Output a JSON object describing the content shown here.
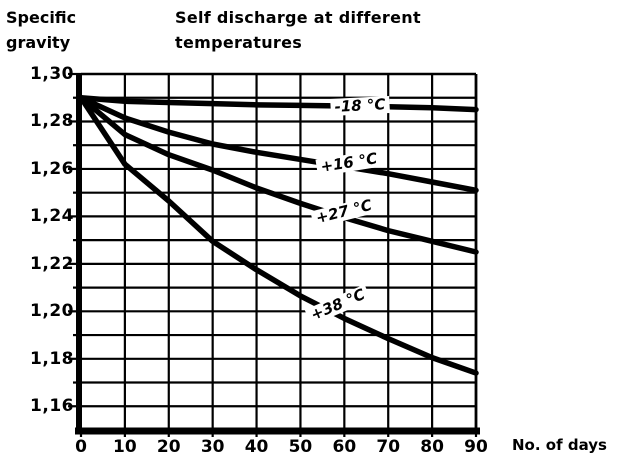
{
  "header": {
    "y_axis_title_line1": "Specific",
    "y_axis_title_line2": "gravity",
    "title_line1": "Self discharge at different",
    "title_line2": "temperatures",
    "x_axis_label": "No. of days"
  },
  "colors": {
    "ink": "#000000",
    "background": "#ffffff"
  },
  "chart_data": {
    "type": "line",
    "title": "Self discharge at different temperatures",
    "ylabel": "Specific gravity",
    "xlabel": "No. of days",
    "xlim": [
      0,
      90
    ],
    "ylim": [
      1.15,
      1.3
    ],
    "grid": {
      "visible": true,
      "horizontal_step": 0.01,
      "vertical_step_days": 10
    },
    "x": [
      0,
      10,
      20,
      30,
      40,
      50,
      60,
      70,
      80,
      90
    ],
    "series": [
      {
        "name": "-18 °C",
        "values": [
          1.29,
          1.2885,
          1.288,
          1.2875,
          1.287,
          1.2868,
          1.2865,
          1.2862,
          1.2858,
          1.285
        ],
        "label": {
          "x": 63.5,
          "y": 1.2865,
          "rotation": -3
        }
      },
      {
        "name": "+16 °C",
        "values": [
          1.29,
          1.2815,
          1.2755,
          1.2705,
          1.267,
          1.264,
          1.261,
          1.258,
          1.2545,
          1.251
        ],
        "label": {
          "x": 61,
          "y": 1.2625,
          "rotation": -9
        }
      },
      {
        "name": "+27 °C",
        "values": [
          1.29,
          1.2745,
          1.266,
          1.2595,
          1.252,
          1.2455,
          1.2395,
          1.234,
          1.2295,
          1.225
        ],
        "label": {
          "x": 60,
          "y": 1.242,
          "rotation": -14
        }
      },
      {
        "name": "+38 °C",
        "values": [
          1.29,
          1.262,
          1.2465,
          1.2295,
          1.2175,
          1.2065,
          1.197,
          1.1885,
          1.1805,
          1.174
        ],
        "label": {
          "x": 58.5,
          "y": 1.2025,
          "rotation": -23
        }
      }
    ],
    "yticks": {
      "values": [
        1.3,
        1.28,
        1.26,
        1.24,
        1.22,
        1.2,
        1.18,
        1.16
      ],
      "labels": [
        "1,30",
        "1,28",
        "1,26",
        "1,24",
        "1,22",
        "1,20",
        "1,18",
        "1,16"
      ]
    },
    "xticks": {
      "values": [
        0,
        10,
        20,
        30,
        40,
        50,
        60,
        70,
        80,
        90
      ],
      "labels": [
        "0",
        "10",
        "20",
        "30",
        "40",
        "50",
        "60",
        "70",
        "80",
        "90"
      ]
    }
  }
}
